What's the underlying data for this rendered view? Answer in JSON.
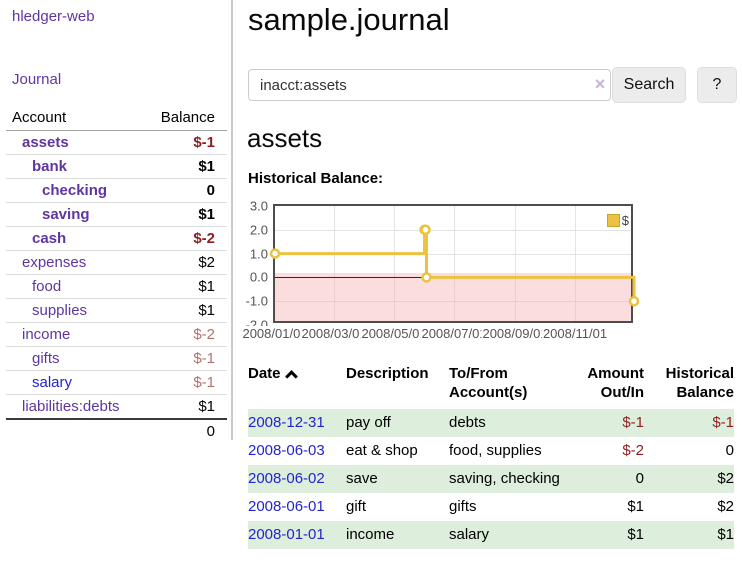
{
  "app": {
    "brand": "hledger-web"
  },
  "sidebar": {
    "nav": [
      {
        "label": "Journal"
      }
    ],
    "accounts_table": {
      "account_header": "Account",
      "balance_header": "Balance",
      "rows": [
        {
          "name": "assets",
          "depth": 1,
          "balance": "$-1",
          "bold": true,
          "neg": "strong"
        },
        {
          "name": "bank",
          "depth": 2,
          "balance": "$1",
          "bold": true,
          "neg": "none"
        },
        {
          "name": "checking",
          "depth": 3,
          "balance": "0",
          "bold": true,
          "neg": "none"
        },
        {
          "name": "saving",
          "depth": 3,
          "balance": "$1",
          "bold": true,
          "neg": "none"
        },
        {
          "name": "cash",
          "depth": 2,
          "balance": "$-2",
          "bold": true,
          "neg": "strong"
        },
        {
          "name": "expenses",
          "depth": 1,
          "balance": "$2",
          "bold": false,
          "neg": "none"
        },
        {
          "name": "food",
          "depth": 2,
          "balance": "$1",
          "bold": false,
          "neg": "none"
        },
        {
          "name": "supplies",
          "depth": 2,
          "balance": "$1",
          "bold": false,
          "neg": "none"
        },
        {
          "name": "income",
          "depth": 1,
          "balance": "$-2",
          "bold": false,
          "neg": "muted"
        },
        {
          "name": "gifts",
          "depth": 2,
          "balance": "$-1",
          "bold": false,
          "neg": "muted"
        },
        {
          "name": "salary",
          "depth": 2,
          "balance": "$-1",
          "bold": false,
          "neg": "muted",
          "blue": true
        },
        {
          "name": "liabilities:debts",
          "depth": 1,
          "balance": "$1",
          "bold": false,
          "neg": "none"
        }
      ],
      "total": "0"
    }
  },
  "main": {
    "title": "sample.journal",
    "search": {
      "value": "inacct:assets",
      "clear_icon": "×",
      "button": "Search",
      "help": "?"
    },
    "account_heading": "assets",
    "chart_heading": "Historical Balance:"
  },
  "chart_data": {
    "type": "line",
    "step": true,
    "title": "Historical Balance:",
    "series": [
      {
        "name": "$",
        "color": "#edc240",
        "points": [
          [
            "2008-01-01",
            1.0
          ],
          [
            "2008-06-01",
            2.0
          ],
          [
            "2008-06-02",
            2.0
          ],
          [
            "2008-06-03",
            0.0
          ],
          [
            "2008-12-31",
            -1.0
          ]
        ]
      }
    ],
    "xlim": [
      "2008-01-01",
      "2008-12-31"
    ],
    "ylim": [
      -2.0,
      3.0
    ],
    "y_ticks": [
      "3.0",
      "2.0",
      "1.0",
      "0.0",
      "-1.0",
      "-2.0"
    ],
    "x_ticks": [
      "2008/01/01",
      "2008/03/01",
      "2008/05/01",
      "2008/07/01",
      "2008/09/01",
      "2008/11/01"
    ],
    "legend": {
      "label": "$",
      "position": "top-right"
    },
    "grid": true,
    "zero_line_color": "#8b0000",
    "negative_region_color": "#fadbdb"
  },
  "register_table": {
    "headers": {
      "date": "Date",
      "description": "Description",
      "accounts": "To/From Account(s)",
      "amount": "Amount Out/In",
      "balance": "Historical Balance"
    },
    "sort": {
      "column": "date",
      "direction": "ascending"
    },
    "rows": [
      {
        "date": "2008-12-31",
        "description": "pay off",
        "accounts": "debts",
        "amount": "$-1",
        "amount_neg": true,
        "balance": "$-1",
        "balance_neg": true
      },
      {
        "date": "2008-06-03",
        "description": "eat & shop",
        "accounts": "food, supplies",
        "amount": "$-2",
        "amount_neg": true,
        "balance": "0",
        "balance_neg": false
      },
      {
        "date": "2008-06-02",
        "description": "save",
        "accounts": "saving, checking",
        "amount": "0",
        "amount_neg": false,
        "balance": "$2",
        "balance_neg": false
      },
      {
        "date": "2008-06-01",
        "description": "gift",
        "accounts": "gifts",
        "amount": "$1",
        "amount_neg": false,
        "balance": "$2",
        "balance_neg": false
      },
      {
        "date": "2008-01-01",
        "description": "income",
        "accounts": "salary",
        "amount": "$1",
        "amount_neg": false,
        "balance": "$1",
        "balance_neg": false
      }
    ]
  }
}
